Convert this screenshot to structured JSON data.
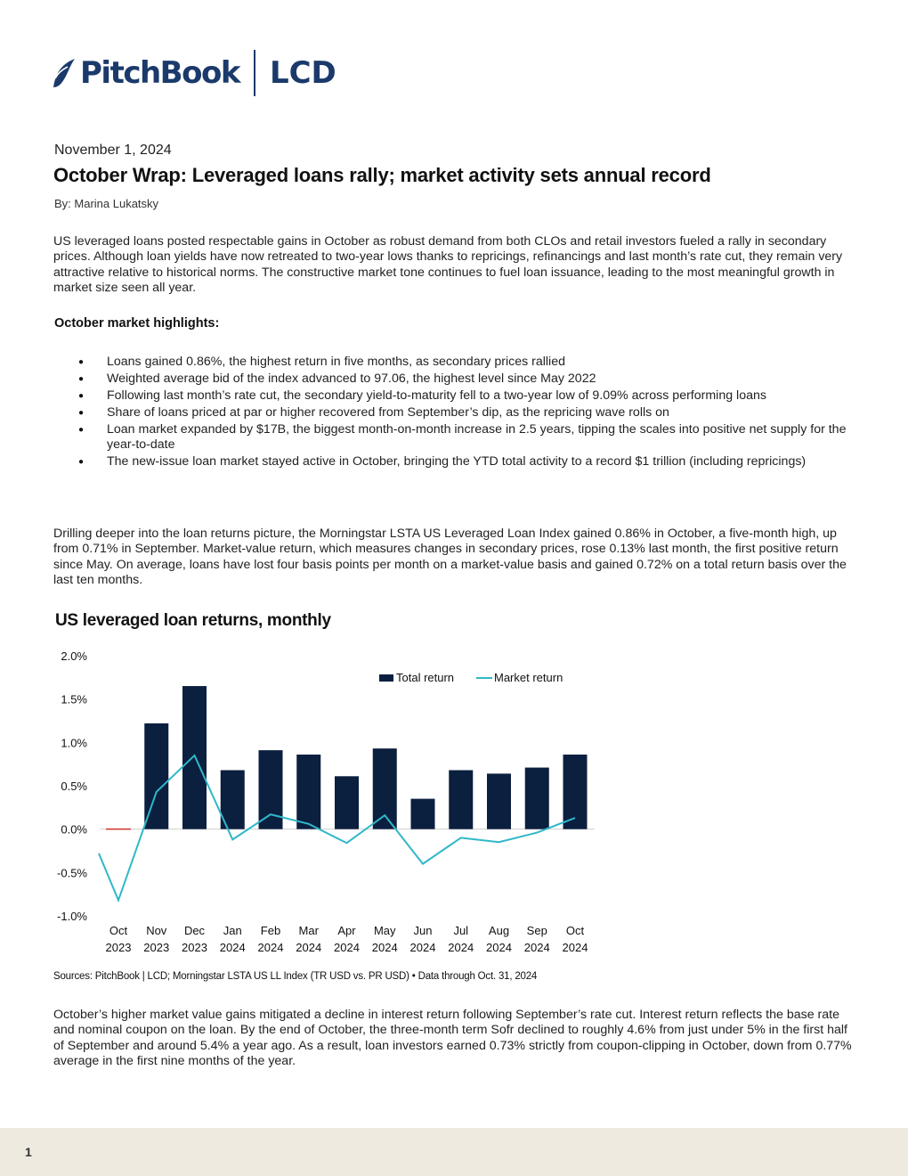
{
  "header": {
    "brand": "PitchBook",
    "sub_brand": "LCD"
  },
  "article": {
    "date": "November 1, 2024",
    "title": "October Wrap: Leveraged loans rally; market activity sets annual record",
    "byline": "By: Marina Lukatsky",
    "intro": "US leveraged loans posted respectable gains in October as robust demand from both CLOs and retail investors fueled a rally in secondary prices. Although loan yields have now retreated to two-year lows thanks to repricings, refinancings and last month’s rate cut, they remain very attractive relative to historical norms. The constructive market tone continues to fuel loan issuance, leading to the most meaningful growth in market size seen all year.",
    "highlights_title": "October market highlights:",
    "highlights": [
      "Loans gained 0.86%, the highest return in five months, as secondary prices rallied",
      "Weighted average bid of the index advanced to 97.06, the highest level since May 2022",
      "Following last month’s rate cut, the secondary yield-to-maturity fell to a two-year low of 9.09% across performing loans",
      "Share of loans priced at par or higher recovered from September’s dip, as the repricing wave rolls on",
      "Loan market expanded by $17B, the biggest month-on-month increase in 2.5 years, tipping the scales into positive net supply for the year-to-date",
      "The new-issue loan market stayed active in October, bringing the YTD total activity to a record $1 trillion (including repricings)"
    ],
    "para2": "Drilling deeper into the loan returns picture, the Morningstar LSTA US Leveraged Loan Index gained 0.86% in October, a five-month high, up from 0.71% in September. Market-value return, which measures changes in secondary prices, rose 0.13% last month, the first positive return since May. On average, loans have lost four basis points per month on a market-value basis and gained 0.72% on a total return basis over the last ten months.",
    "para3": "October’s higher market value gains mitigated a decline in interest return following September’s rate cut. Interest return reflects the base rate and nominal coupon on the loan. By the end of October, the three-month term Sofr declined to roughly 4.6% from just under 5% in the first half of September and around 5.4% a year ago. As a result, loan investors earned 0.73% strictly from coupon-clipping in October, down from 0.77% average in the first nine months of the year."
  },
  "chart_data": {
    "type": "bar",
    "title": "US leveraged loan returns, monthly",
    "categories": [
      "Oct 2023",
      "Nov 2023",
      "Dec 2023",
      "Jan 2024",
      "Feb 2024",
      "Mar 2024",
      "Apr 2024",
      "May 2024",
      "Jun 2024",
      "Jul 2024",
      "Aug 2024",
      "Sep 2024",
      "Oct 2024"
    ],
    "category_lines": [
      [
        "Oct",
        "2023"
      ],
      [
        "Nov",
        "2023"
      ],
      [
        "Dec",
        "2023"
      ],
      [
        "Jan",
        "2024"
      ],
      [
        "Feb",
        "2024"
      ],
      [
        "Mar",
        "2024"
      ],
      [
        "Apr",
        "2024"
      ],
      [
        "May",
        "2024"
      ],
      [
        "Jun",
        "2024"
      ],
      [
        "Jul",
        "2024"
      ],
      [
        "Aug",
        "2024"
      ],
      [
        "Sep",
        "2024"
      ],
      [
        "Oct",
        "2024"
      ]
    ],
    "series": [
      {
        "name": "Total return",
        "kind": "bar",
        "color": "#0b1f3f",
        "values": [
          -0.01,
          1.22,
          1.65,
          0.68,
          0.91,
          0.86,
          0.61,
          0.93,
          0.35,
          0.68,
          0.64,
          0.71,
          0.86
        ]
      },
      {
        "name": "Market return",
        "kind": "line",
        "color": "#2fb8c8",
        "values": [
          -0.82,
          0.43,
          0.85,
          -0.12,
          0.17,
          0.06,
          -0.16,
          0.16,
          -0.4,
          -0.1,
          -0.15,
          -0.04,
          0.13
        ]
      }
    ],
    "negative_bar_color": "#d0312d",
    "yticks": [
      "2.0%",
      "1.5%",
      "1.0%",
      "0.5%",
      "0.0%",
      "-0.5%",
      "-1.0%"
    ],
    "ylim": [
      -1.0,
      2.0
    ],
    "legend": "top-right",
    "grid": false,
    "sources": "Sources: PitchBook | LCD; Morningstar LSTA US LL Index (TR USD vs. PR USD) • Data through Oct. 31, 2024"
  },
  "footer": {
    "page_number": "1"
  }
}
